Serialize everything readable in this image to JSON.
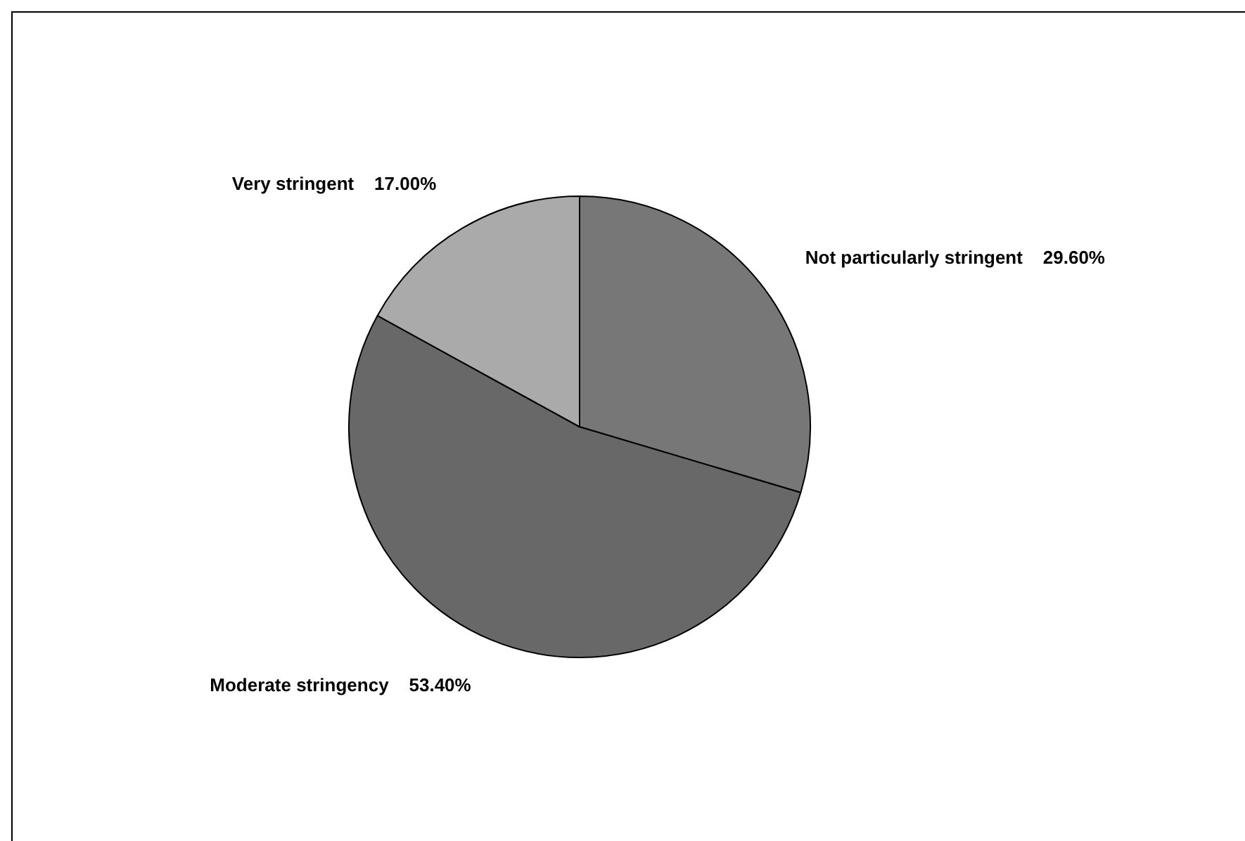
{
  "chart_data": {
    "type": "pie",
    "categories": [
      "Not particularly stringent",
      "Moderate stringency",
      "Very stringent"
    ],
    "values": [
      29.6,
      53.4,
      17.0
    ],
    "colors": [
      "#777777",
      "#686868",
      "#aaaaaa"
    ],
    "value_labels": [
      "29.60%",
      "53.40%",
      "17.00%"
    ],
    "legend": false
  }
}
